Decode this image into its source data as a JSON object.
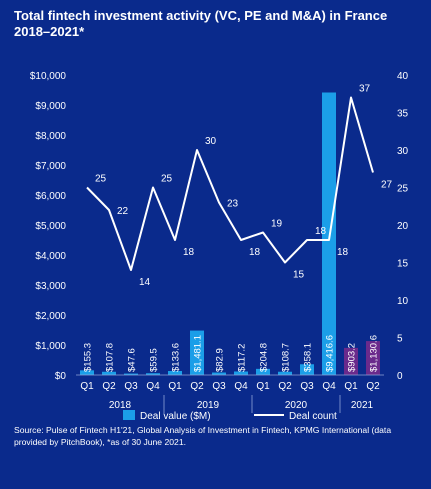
{
  "title": "Total fintech investment activity (VC, PE and M&A) in France 2018–2021*",
  "source": "Source: Pulse of Fintech H1'21, Global Analysis of Investment in Fintech, KPMG International (data provided by PitchBook), *as of 30 June 2021.",
  "colors": {
    "background": "#0a2a8c",
    "bar": "#1b9ee8",
    "bar_highlight": "#6a2a8c",
    "line": "#ffffff",
    "text": "#ffffff"
  },
  "chart_data": {
    "type": "bar",
    "categories": [
      "Q1",
      "Q2",
      "Q3",
      "Q4",
      "Q1",
      "Q2",
      "Q3",
      "Q4",
      "Q1",
      "Q2",
      "Q3",
      "Q4",
      "Q1",
      "Q2"
    ],
    "years": [
      "2018",
      "2019",
      "2020",
      "2021"
    ],
    "series": [
      {
        "name": "Deal value ($M)",
        "type": "bar",
        "axis": "left",
        "values": [
          155.3,
          107.8,
          47.6,
          59.5,
          133.6,
          1481.1,
          82.9,
          117.2,
          204.8,
          108.7,
          358.1,
          9416.6,
          903.2,
          1130.6
        ],
        "labels": [
          "$155.3",
          "$107.8",
          "$47.6",
          "$59.5",
          "$133.6",
          "$1,481.1",
          "$82.9",
          "$117.2",
          "$204.8",
          "$108.7",
          "$358.1",
          "$9,416.6",
          "$903.2",
          "$1,130.6"
        ]
      },
      {
        "name": "Deal count",
        "type": "line",
        "axis": "right",
        "values": [
          25,
          22,
          14,
          25,
          18,
          30,
          23,
          18,
          19,
          15,
          18,
          18,
          37,
          27
        ],
        "labels": [
          "25",
          "22",
          "14",
          "25",
          "18",
          "30",
          "23",
          "18",
          "19",
          "15",
          "18",
          "18",
          "37",
          "27"
        ]
      }
    ],
    "y_left": {
      "ylim": [
        0,
        10000
      ],
      "ticks": [
        "$0",
        "$1,000",
        "$2,000",
        "$3,000",
        "$4,000",
        "$5,000",
        "$6,000",
        "$7,000",
        "$8,000",
        "$9,000",
        "$10,000"
      ]
    },
    "y_right": {
      "ylim": [
        0,
        40
      ],
      "ticks": [
        "0",
        "5",
        "10",
        "15",
        "20",
        "25",
        "30",
        "35",
        "40"
      ]
    },
    "grid": false,
    "legend": "bottom-center",
    "highlight_last_n_bars": 2
  }
}
